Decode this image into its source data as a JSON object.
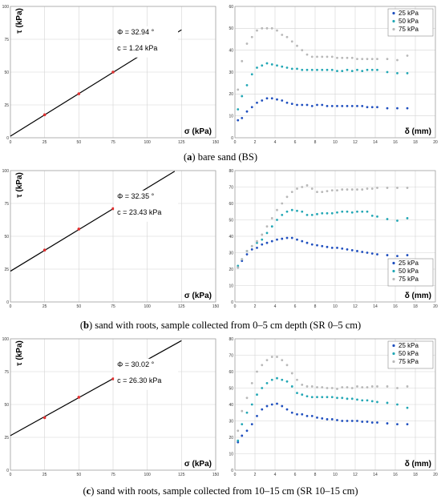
{
  "captions": [
    {
      "letter": "a",
      "text": " bare sand (BS)"
    },
    {
      "letter": "b",
      "text": " sand with roots, sample collected from 0–5 cm depth (SR 0–5 cm)"
    },
    {
      "letter": "c",
      "text": " sand with roots, sample collected from 10–15 cm (SR 10–15 cm)"
    }
  ],
  "colors": {
    "fit_line": "#000000",
    "points": "#e03030",
    "s25": "#1f4fbf",
    "s50": "#22a7b5",
    "s75": "#b8b8b8"
  },
  "chart_data": [
    {
      "type": "scatter",
      "panel": "a-left",
      "xlabel": "σ (kPa)",
      "ylabel": "τ (kPa)",
      "xlim": [
        0,
        150
      ],
      "ylim": [
        0,
        100
      ],
      "xticks": [
        0,
        25,
        50,
        75,
        100,
        125,
        150
      ],
      "yticks": [
        0,
        25,
        50,
        75,
        100
      ],
      "points": {
        "x": [
          25,
          50,
          75
        ],
        "y": [
          17.5,
          33.5,
          50.0
        ]
      },
      "fit": {
        "slope": 0.6474,
        "intercept": 1.24,
        "x": [
          0,
          125
        ]
      },
      "annotations": [
        "Φ = 32.94 °",
        "c = 1.24 kPa"
      ]
    },
    {
      "type": "scatter",
      "panel": "a-right",
      "xlabel": "δ (mm)",
      "ylabel": "",
      "xlim": [
        0,
        20
      ],
      "ylim": [
        0,
        60
      ],
      "xticks": [
        0,
        2,
        4,
        6,
        8,
        10,
        12,
        14,
        16,
        18,
        20
      ],
      "yticks": [
        0,
        10,
        20,
        30,
        40,
        50,
        60
      ],
      "legend_position": "top-right",
      "series": [
        {
          "name": "25 kPa",
          "x": [
            0.3,
            0.7,
            1.2,
            1.7,
            2.2,
            2.7,
            3.2,
            3.7,
            4.2,
            4.7,
            5.2,
            5.7,
            6.2,
            6.7,
            7.2,
            7.7,
            8.2,
            8.7,
            9.2,
            9.7,
            10.2,
            10.7,
            11.2,
            11.7,
            12.2,
            12.7,
            13.2,
            13.7,
            14.2,
            15.2,
            16.2,
            17.2
          ],
          "y": [
            8,
            9,
            12,
            14,
            16,
            17,
            18,
            18,
            17.5,
            17,
            16,
            15.5,
            15,
            15,
            15,
            14.5,
            15,
            15,
            14.5,
            14.5,
            14.5,
            14.5,
            14.5,
            14.5,
            14.5,
            14.5,
            14,
            14,
            14,
            13.5,
            13.5,
            13.5
          ]
        },
        {
          "name": "50 kPa",
          "x": [
            0.3,
            0.7,
            1.2,
            1.7,
            2.2,
            2.7,
            3.2,
            3.7,
            4.2,
            4.7,
            5.2,
            5.7,
            6.2,
            6.7,
            7.2,
            7.7,
            8.2,
            8.7,
            9.2,
            9.7,
            10.2,
            10.7,
            11.2,
            11.7,
            12.2,
            12.7,
            13.2,
            13.7,
            14.2,
            15.2,
            16.2,
            17.2
          ],
          "y": [
            13,
            19,
            24,
            29,
            32,
            33,
            34,
            33.5,
            33,
            32.5,
            32,
            31.5,
            31.5,
            31,
            31,
            31,
            31,
            31,
            31,
            31,
            30.5,
            30.5,
            31,
            30.5,
            31,
            30.5,
            31,
            31,
            31,
            30,
            29.5,
            29.5
          ]
        },
        {
          "name": "75 kPa",
          "x": [
            0.3,
            0.7,
            1.2,
            1.7,
            2.2,
            2.7,
            3.2,
            3.7,
            4.2,
            4.7,
            5.2,
            5.7,
            6.2,
            6.7,
            7.2,
            7.7,
            8.2,
            8.7,
            9.2,
            9.7,
            10.2,
            10.7,
            11.2,
            11.7,
            12.2,
            12.7,
            13.2,
            13.7,
            14.2,
            15.2,
            16.2,
            17.2
          ],
          "y": [
            22,
            35,
            43,
            46,
            49,
            50,
            50,
            50,
            49,
            47,
            46,
            44,
            42,
            40,
            38,
            37,
            37,
            37,
            37,
            37,
            36.5,
            36.5,
            36.5,
            36.5,
            36,
            36,
            36,
            36,
            36,
            36,
            35.5,
            37.5
          ]
        }
      ]
    },
    {
      "type": "scatter",
      "panel": "b-left",
      "xlabel": "σ (kPa)",
      "ylabel": "τ (kPa)",
      "xlim": [
        0,
        150
      ],
      "ylim": [
        0,
        100
      ],
      "xticks": [
        0,
        25,
        50,
        75,
        100,
        125,
        150
      ],
      "yticks": [
        0,
        25,
        50,
        75,
        100
      ],
      "points": {
        "x": [
          25,
          50,
          75
        ],
        "y": [
          39.5,
          55.5,
          71.0
        ]
      },
      "fit": {
        "slope": 0.6335,
        "intercept": 23.43,
        "x": [
          0,
          120
        ]
      },
      "annotations": [
        "Φ = 32.35 °",
        "c = 23.43 kPa"
      ]
    },
    {
      "type": "scatter",
      "panel": "b-right",
      "xlabel": "δ (mm)",
      "ylabel": "",
      "xlim": [
        0,
        20
      ],
      "ylim": [
        0,
        80
      ],
      "xticks": [
        0,
        2,
        4,
        6,
        8,
        10,
        12,
        14,
        16,
        18,
        20
      ],
      "yticks": [
        0,
        10,
        20,
        30,
        40,
        50,
        60,
        70,
        80
      ],
      "legend_position": "bottom-right",
      "series": [
        {
          "name": "25 kPa",
          "x": [
            0.3,
            0.7,
            1.2,
            1.7,
            2.2,
            2.7,
            3.2,
            3.7,
            4.2,
            4.7,
            5.2,
            5.7,
            6.2,
            6.7,
            7.2,
            7.7,
            8.2,
            8.7,
            9.2,
            9.7,
            10.2,
            10.7,
            11.2,
            11.7,
            12.2,
            12.7,
            13.2,
            13.7,
            14.2,
            15.2,
            16.2,
            17.2
          ],
          "y": [
            21,
            25,
            29,
            32,
            33,
            35,
            36,
            37,
            38,
            38.5,
            39,
            39,
            38,
            37,
            36,
            35,
            34.5,
            34,
            33.5,
            33,
            33,
            32.5,
            32,
            31.5,
            31,
            30.5,
            30,
            29.5,
            29,
            28.5,
            28,
            28.5
          ]
        },
        {
          "name": "50 kPa",
          "x": [
            0.3,
            0.7,
            1.2,
            1.7,
            2.2,
            2.7,
            3.2,
            3.7,
            4.2,
            4.7,
            5.2,
            5.7,
            6.2,
            6.7,
            7.2,
            7.7,
            8.2,
            8.7,
            9.2,
            9.7,
            10.2,
            10.7,
            11.2,
            11.7,
            12.2,
            12.7,
            13.2,
            13.7,
            14.2,
            15.2,
            16.2,
            17.2
          ],
          "y": [
            22,
            26,
            31,
            34,
            36,
            38,
            42,
            46,
            50,
            53,
            55,
            56,
            55.5,
            55,
            53,
            53,
            53.5,
            54,
            54,
            54,
            54.5,
            55,
            55,
            54.5,
            55,
            55,
            55,
            52.5,
            52,
            50.5,
            49.5,
            51
          ]
        },
        {
          "name": "75 kPa",
          "x": [
            0.3,
            0.7,
            1.2,
            1.7,
            2.2,
            2.7,
            3.2,
            3.7,
            4.2,
            4.7,
            5.2,
            5.7,
            6.2,
            6.7,
            7.2,
            7.7,
            8.2,
            8.7,
            9.2,
            9.7,
            10.2,
            10.7,
            11.2,
            11.7,
            12.2,
            12.7,
            13.2,
            13.7,
            14.2,
            15.2,
            16.2,
            17.2
          ],
          "y": [
            21,
            26,
            31,
            34,
            37,
            41,
            46,
            51,
            56,
            60,
            64,
            67,
            69,
            70,
            71,
            69,
            67,
            67,
            67.5,
            68,
            68,
            68.5,
            68.5,
            68.5,
            68.5,
            68.5,
            69,
            69,
            69.5,
            69.5,
            69.5,
            69.5
          ]
        }
      ]
    },
    {
      "type": "scatter",
      "panel": "c-left",
      "xlabel": "σ (kPa)",
      "ylabel": "τ (kPa)",
      "xlim": [
        0,
        150
      ],
      "ylim": [
        0,
        100
      ],
      "xticks": [
        0,
        25,
        50,
        75,
        100,
        125,
        150
      ],
      "yticks": [
        0,
        25,
        50,
        75,
        100
      ],
      "points": {
        "x": [
          25,
          50,
          75
        ],
        "y": [
          40.0,
          55.5,
          69.5
        ]
      },
      "fit": {
        "slope": 0.5783,
        "intercept": 26.3,
        "x": [
          0,
          125
        ]
      },
      "annotations": [
        "Φ = 30.02 °",
        "c = 26.30 kPa"
      ]
    },
    {
      "type": "scatter",
      "panel": "c-right",
      "xlabel": "δ (mm)",
      "ylabel": "",
      "xlim": [
        0,
        20
      ],
      "ylim": [
        0,
        80
      ],
      "xticks": [
        0,
        2,
        4,
        6,
        8,
        10,
        12,
        14,
        16,
        18,
        20
      ],
      "yticks": [
        0,
        10,
        20,
        30,
        40,
        50,
        60,
        70,
        80
      ],
      "legend_position": "top-right",
      "series": [
        {
          "name": "25 kPa",
          "x": [
            0.3,
            0.7,
            1.2,
            1.7,
            2.2,
            2.7,
            3.2,
            3.7,
            4.2,
            4.7,
            5.2,
            5.7,
            6.2,
            6.7,
            7.2,
            7.7,
            8.2,
            8.7,
            9.2,
            9.7,
            10.2,
            10.7,
            11.2,
            11.7,
            12.2,
            12.7,
            13.2,
            13.7,
            14.2,
            15.2,
            16.2,
            17.2
          ],
          "y": [
            17,
            21,
            24,
            28,
            33,
            37,
            39,
            40,
            40.5,
            39,
            37,
            35,
            34,
            34,
            33,
            33,
            32,
            31.5,
            31,
            31,
            30.5,
            30,
            30,
            30,
            30,
            29.5,
            29.5,
            29,
            29,
            28.5,
            28,
            28
          ]
        },
        {
          "name": "50 kPa",
          "x": [
            0.3,
            0.7,
            1.2,
            1.7,
            2.2,
            2.7,
            3.2,
            3.7,
            4.2,
            4.7,
            5.2,
            5.7,
            6.2,
            6.7,
            7.2,
            7.7,
            8.2,
            8.7,
            9.2,
            9.7,
            10.2,
            10.7,
            11.2,
            11.7,
            12.2,
            12.7,
            13.2,
            13.7,
            14.2,
            15.2,
            16.2,
            17.2
          ],
          "y": [
            18,
            28,
            35,
            40,
            46,
            50,
            53,
            55,
            56,
            55,
            54,
            51,
            47,
            46,
            45,
            44.5,
            44.5,
            44.5,
            44.5,
            44.5,
            44,
            44,
            43.5,
            43.5,
            43,
            42.5,
            42.5,
            42,
            41.5,
            41,
            40,
            38
          ]
        },
        {
          "name": "75 kPa",
          "x": [
            0.3,
            0.7,
            1.2,
            1.7,
            2.2,
            2.7,
            3.2,
            3.7,
            4.2,
            4.7,
            5.2,
            5.7,
            6.2,
            6.7,
            7.2,
            7.7,
            8.2,
            8.7,
            9.2,
            9.7,
            10.2,
            10.7,
            11.2,
            11.7,
            12.2,
            12.7,
            13.2,
            13.7,
            14.2,
            15.2,
            16.2,
            17.2
          ],
          "y": [
            24,
            36,
            44,
            53,
            60,
            64,
            67,
            69,
            69,
            67,
            64,
            59,
            55,
            52,
            51,
            51,
            50.5,
            50.5,
            50,
            50,
            49.5,
            50.5,
            50.5,
            50,
            51,
            50.5,
            50.5,
            51,
            51,
            51,
            50,
            51
          ]
        }
      ]
    }
  ]
}
